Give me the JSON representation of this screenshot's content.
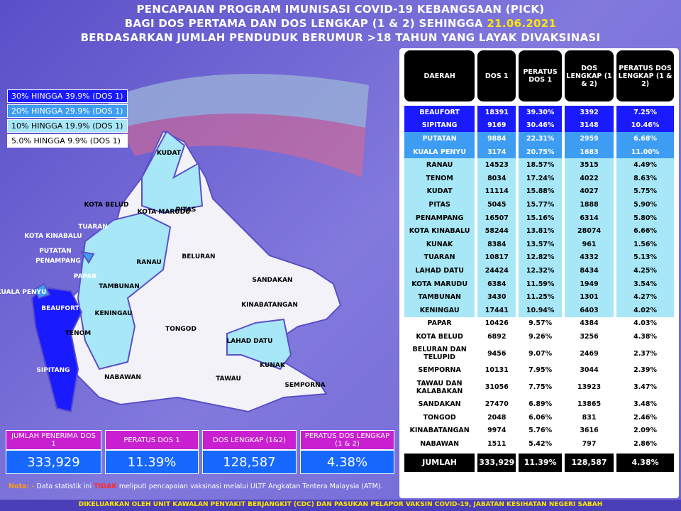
{
  "header": {
    "line1": "PENCAPAIAN PROGRAM IMUNISASI COVID-19 KEBANGSAAN (PICK)",
    "line2": "BAGI DOS PERTAMA DAN DOS LENGKAP (1 & 2) SEHINGGA",
    "date": "21.06.2021",
    "line3": "BERDASARKAN JUMLAH PENDUDUK BERUMUR >18 TAHUN YANG LAYAK DIVAKSINASI"
  },
  "legend": [
    "30% HINGGA 39.9% (DOS 1)",
    "20% HINGGA 29.9% (DOS 1)",
    "10% HINGGA 19.9% (DOS 1)",
    "5.0% HINGGA 9.9% (DOS 1)"
  ],
  "map_labels": [
    "KUDAT",
    "PITAS",
    "KOTA BELUD",
    "KOTA MARUDU",
    "TUARAN",
    "KOTA KINABALU",
    "PUTATAN",
    "PENAMPANG",
    "PAPAR",
    "RANAU",
    "BELURAN",
    "SANDAKAN",
    "KUALA PENYU",
    "BEAUFORT",
    "TAMBUNAN",
    "KENINGAU",
    "KINABATANGAN",
    "TENOM",
    "TONGOD",
    "LAHAD DATU",
    "KUNAK",
    "SIPITANG",
    "NABAWAN",
    "TAWAU",
    "SEMPORNA"
  ],
  "table": {
    "columns": [
      "DAERAH",
      "DOS 1",
      "PERATUS DOS 1",
      "DOS LENGKAP (1 & 2)",
      "PERATUS DOS LENGKAP (1 & 2)"
    ],
    "rows": [
      [
        "BEAUFORT",
        "18391",
        "39.30%",
        "3392",
        "7.25%"
      ],
      [
        "SIPITANG",
        "9169",
        "30.46%",
        "3148",
        "10.46%"
      ],
      [
        "PUTATAN",
        "9884",
        "22.31%",
        "2959",
        "6.68%"
      ],
      [
        "KUALA PENYU",
        "3174",
        "20.75%",
        "1683",
        "11.00%"
      ],
      [
        "RANAU",
        "14523",
        "18.57%",
        "3515",
        "4.49%"
      ],
      [
        "TENOM",
        "8034",
        "17.24%",
        "4022",
        "8.63%"
      ],
      [
        "KUDAT",
        "11114",
        "15.88%",
        "4027",
        "5.75%"
      ],
      [
        "PITAS",
        "5045",
        "15.77%",
        "1888",
        "5.90%"
      ],
      [
        "PENAMPANG",
        "16507",
        "15.16%",
        "6314",
        "5.80%"
      ],
      [
        "KOTA KINABALU",
        "58244",
        "13.81%",
        "28074",
        "6.66%"
      ],
      [
        "KUNAK",
        "8384",
        "13.57%",
        "961",
        "1.56%"
      ],
      [
        "TUARAN",
        "10817",
        "12.82%",
        "4332",
        "5.13%"
      ],
      [
        "LAHAD DATU",
        "24424",
        "12.32%",
        "8434",
        "4.25%"
      ],
      [
        "KOTA MARUDU",
        "6384",
        "11.59%",
        "1949",
        "3.54%"
      ],
      [
        "TAMBUNAN",
        "3430",
        "11.25%",
        "1301",
        "4.27%"
      ],
      [
        "KENINGAU",
        "17441",
        "10.94%",
        "6403",
        "4.02%"
      ],
      [
        "PAPAR",
        "10426",
        "9.57%",
        "4384",
        "4.03%"
      ],
      [
        "KOTA BELUD",
        "6892",
        "9.26%",
        "3256",
        "4.38%"
      ],
      [
        "BELURAN DAN TELUPID",
        "9456",
        "9.07%",
        "2469",
        "2.37%"
      ],
      [
        "SEMPORNA",
        "10131",
        "7.95%",
        "3044",
        "2.39%"
      ],
      [
        "TAWAU DAN KALABAKAN",
        "31056",
        "7.75%",
        "13923",
        "3.47%"
      ],
      [
        "SANDAKAN",
        "27470",
        "6.89%",
        "13865",
        "3.48%"
      ],
      [
        "TONGOD",
        "2048",
        "6.06%",
        "831",
        "2.46%"
      ],
      [
        "KINABATANGAN",
        "9974",
        "5.76%",
        "3616",
        "2.09%"
      ],
      [
        "NABAWAN",
        "1511",
        "5.42%",
        "797",
        "2.86%"
      ]
    ],
    "total": [
      "JUMLAH",
      "333,929",
      "11.39%",
      "128,587",
      "4.38%"
    ]
  },
  "summary": [
    {
      "label": "JUMLAH PENERIMA DOS 1",
      "value": "333,929"
    },
    {
      "label": "PERATUS DOS 1",
      "value": "11.39%"
    },
    {
      "label": "DOS LENGKAP (1&2)",
      "value": "128,587"
    },
    {
      "label": "PERATUS DOS LENGKAP (1 & 2)",
      "value": "4.38%"
    }
  ],
  "note": {
    "prefix": "Nota: -",
    "text1": "Data statistik ini",
    "emphasis": "TIDAK",
    "text2": "meliputi pencapaian vaksinasi melalui ULTF Angkatan Tentera Malaysia (ATM)."
  },
  "footer": "DIKELUARKAN OLEH UNIT KAWALAN PENYAKIT BERJANGKIT (CDC) DAN PASUKAN PELAPOR VAKSIN COVID-19, JABATAN KESIHATAN NEGERI SABAH"
}
